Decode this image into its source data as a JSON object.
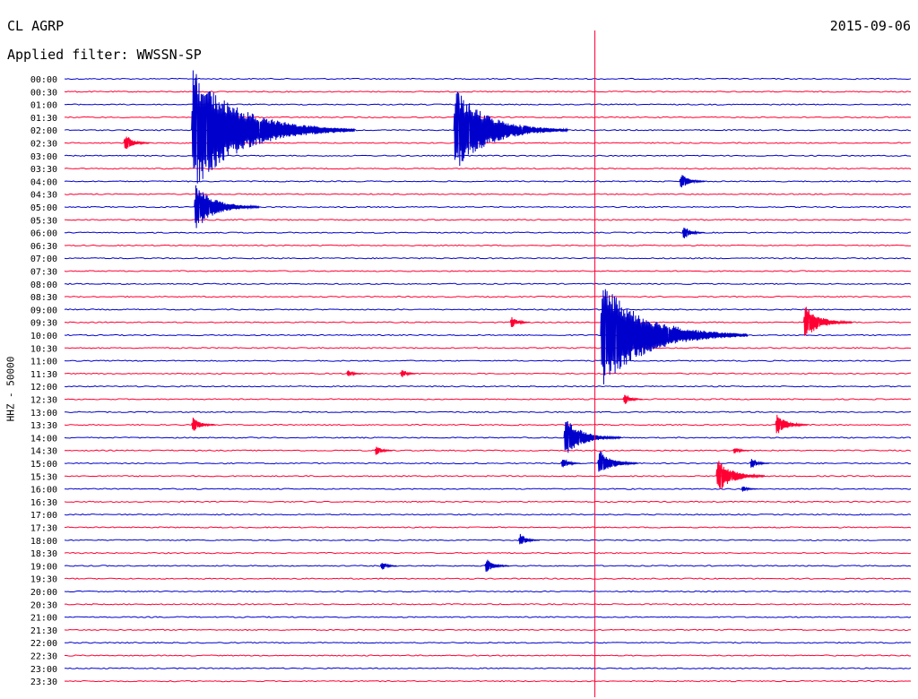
{
  "header": {
    "station": "CL AGRP",
    "date": "2015-09-06",
    "filter": "Applied filter: WWSSN-SP"
  },
  "chart_data": {
    "type": "helicorder",
    "ylabel": "HHZ - 50000",
    "row_labels": [
      "00:00",
      "00:30",
      "01:00",
      "01:30",
      "02:00",
      "02:30",
      "03:00",
      "03:30",
      "04:00",
      "04:30",
      "05:00",
      "05:30",
      "06:00",
      "06:30",
      "07:00",
      "07:30",
      "08:00",
      "08:30",
      "09:00",
      "09:30",
      "10:00",
      "10:30",
      "11:00",
      "11:30",
      "12:00",
      "12:30",
      "13:00",
      "13:30",
      "14:00",
      "14:30",
      "15:00",
      "15:30",
      "16:00",
      "16:30",
      "17:00",
      "17:30",
      "18:00",
      "18:30",
      "19:00",
      "19:30",
      "20:00",
      "20:30",
      "21:00",
      "21:30",
      "22:00",
      "22:30",
      "23:00",
      "23:30"
    ],
    "row_minutes": 30,
    "colors": {
      "even_rows": "#0000cc",
      "odd_rows": "#ff0033",
      "marker": "#ff0033"
    },
    "marker_minute": 18.8,
    "events": [
      {
        "row": 4,
        "minute": 4.5,
        "amp": 10
      },
      {
        "row": 4,
        "minute": 13.8,
        "amp": 7
      },
      {
        "row": 5,
        "minute": 2.1,
        "amp": 1.6
      },
      {
        "row": 8,
        "minute": 21.8,
        "amp": 1.6
      },
      {
        "row": 10,
        "minute": 4.6,
        "amp": 4
      },
      {
        "row": 12,
        "minute": 21.9,
        "amp": 1.4
      },
      {
        "row": 19,
        "minute": 15.8,
        "amp": 1.2
      },
      {
        "row": 19,
        "minute": 26.2,
        "amp": 3
      },
      {
        "row": 20,
        "minute": 19.0,
        "amp": 9
      },
      {
        "row": 23,
        "minute": 10.0,
        "amp": 0.8
      },
      {
        "row": 23,
        "minute": 11.9,
        "amp": 1
      },
      {
        "row": 25,
        "minute": 19.8,
        "amp": 1.2
      },
      {
        "row": 27,
        "minute": 4.5,
        "amp": 1.5
      },
      {
        "row": 27,
        "minute": 25.2,
        "amp": 2
      },
      {
        "row": 28,
        "minute": 17.7,
        "amp": 3.5
      },
      {
        "row": 29,
        "minute": 11.0,
        "amp": 1.1
      },
      {
        "row": 29,
        "minute": 23.7,
        "amp": 0.8
      },
      {
        "row": 30,
        "minute": 17.6,
        "amp": 1.2
      },
      {
        "row": 30,
        "minute": 18.9,
        "amp": 2.5
      },
      {
        "row": 30,
        "minute": 24.3,
        "amp": 1.2
      },
      {
        "row": 31,
        "minute": 23.1,
        "amp": 3
      },
      {
        "row": 32,
        "minute": 24.0,
        "amp": 0.7
      },
      {
        "row": 36,
        "minute": 16.1,
        "amp": 1.3
      },
      {
        "row": 38,
        "minute": 11.2,
        "amp": 1
      },
      {
        "row": 38,
        "minute": 14.9,
        "amp": 1.5
      }
    ]
  }
}
